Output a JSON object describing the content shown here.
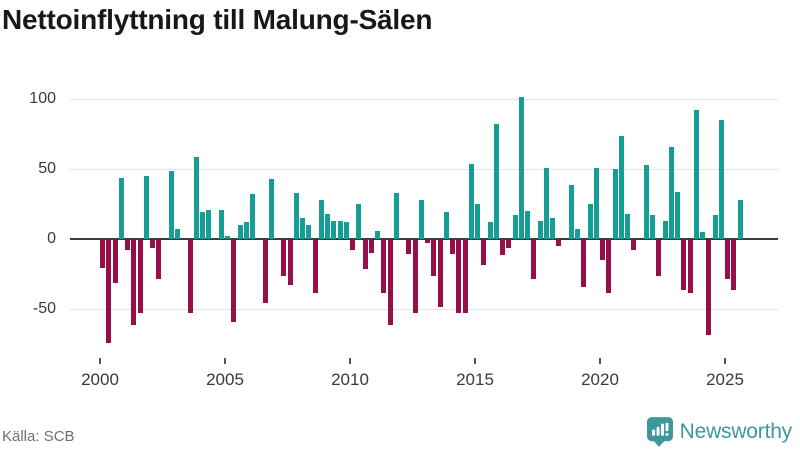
{
  "title": "Nettoinflyttning till Malung-Sälen",
  "source": "Källa: SCB",
  "brand": {
    "name": "Newsworthy",
    "icon": "bar-chart-speech-bubble-icon"
  },
  "colors": {
    "positive": "#149e96",
    "negative": "#970e49",
    "grid": "#e4e4e4",
    "zero_line": "#3c3c3c",
    "axis_text": "#3a3a3a",
    "source_text": "#6e6e78",
    "brand": "#3d989b"
  },
  "chart_data": {
    "type": "bar",
    "title": "Nettoinflyttning till Malung-Sälen",
    "frequency": "quarterly",
    "start_period": "2000-Q1",
    "end_period": "2025-Q3",
    "xlabel": "",
    "ylabel": "",
    "ylim": [
      -80,
      110
    ],
    "grid": true,
    "legend": false,
    "x_tick_labels": [
      "2000",
      "2005",
      "2010",
      "2015",
      "2020",
      "2025"
    ],
    "y_tick_labels": [
      "100",
      "50",
      "0",
      "-50"
    ],
    "y_ticks": [
      100,
      50,
      0,
      -50
    ],
    "values": [
      -20,
      -74,
      -31,
      44,
      -7,
      -61,
      -52,
      45,
      -6,
      -28,
      0,
      49,
      7,
      0,
      -52,
      59,
      19,
      21,
      0,
      21,
      2,
      -59,
      10,
      12,
      32,
      0,
      -45,
      43,
      0,
      -26,
      -32,
      33,
      15,
      10,
      -38,
      28,
      18,
      13,
      13,
      12,
      -7,
      25,
      -21,
      -9,
      6,
      -38,
      -61,
      33,
      0,
      -10,
      -52,
      28,
      -2,
      -26,
      -48,
      19,
      -10,
      -52,
      -52,
      54,
      25,
      -18,
      12,
      82,
      -11,
      -6,
      17,
      102,
      20,
      -28,
      13,
      51,
      15,
      -4,
      0,
      39,
      7,
      -34,
      25,
      51,
      -14,
      -38,
      50,
      74,
      18,
      -7,
      0,
      53,
      17,
      -26,
      13,
      66,
      34,
      -36,
      -38,
      92,
      5,
      -68,
      17,
      85,
      -28,
      -36,
      28
    ]
  }
}
